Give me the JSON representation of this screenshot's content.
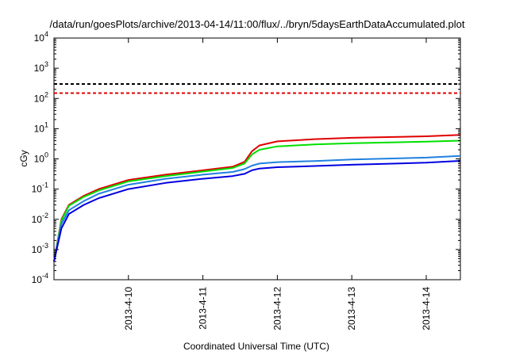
{
  "chart_data": {
    "type": "line",
    "title": "/data/run/goesPlots/archive/2013-04-14/11:00/flux/../bryn/5daysEarthDataAccumulated.plot",
    "xlabel": "Coordinated Universal Time (UTC)",
    "ylabel": "cGy",
    "y_scale": "log",
    "ylim": [
      0.0001,
      10000
    ],
    "xlim": [
      "2013-04-09 00:00",
      "2013-04-14 11:00"
    ],
    "x_tick_labels": [
      "2013-4-10",
      "2013-4-11",
      "2013-4-12",
      "2013-4-13",
      "2013-4-14"
    ],
    "y_tick_labels": [
      {
        "base": "10",
        "exp": "-4"
      },
      {
        "base": "10",
        "exp": "-3"
      },
      {
        "base": "10",
        "exp": "-2"
      },
      {
        "base": "10",
        "exp": "-1"
      },
      {
        "base": "10",
        "exp": "0"
      },
      {
        "base": "10",
        "exp": "1"
      },
      {
        "base": "10",
        "exp": "2"
      },
      {
        "base": "10",
        "exp": "3"
      },
      {
        "base": "10",
        "exp": "4"
      }
    ],
    "grid": false,
    "reference_lines": [
      {
        "y": 300,
        "color": "#000000",
        "style": "dashed"
      },
      {
        "y": 150,
        "color": "#e00000",
        "style": "dashed"
      }
    ],
    "series": [
      {
        "color": "#e00000",
        "x": [
          "2013-04-09 00:00",
          "2013-04-09 02:24",
          "2013-04-09 04:48",
          "2013-04-09 09:36",
          "2013-04-09 14:24",
          "2013-04-10 00:00",
          "2013-04-10 12:00",
          "2013-04-11 00:00",
          "2013-04-11 09:36",
          "2013-04-11 13:26",
          "2013-04-11 15:50",
          "2013-04-11 18:14",
          "2013-04-12 00:00",
          "2013-04-12 12:00",
          "2013-04-13 00:00",
          "2013-04-14 00:00",
          "2013-04-14 11:00"
        ],
        "y": [
          0.0004,
          0.01,
          0.03,
          0.06,
          0.1,
          0.2,
          0.3,
          0.42,
          0.55,
          0.8,
          1.8,
          2.8,
          3.8,
          4.5,
          5.0,
          5.6,
          6.2
        ]
      },
      {
        "color": "#00e000",
        "x": [
          "2013-04-09 00:00",
          "2013-04-09 02:24",
          "2013-04-09 04:48",
          "2013-04-09 09:36",
          "2013-04-09 14:24",
          "2013-04-10 00:00",
          "2013-04-10 12:00",
          "2013-04-11 00:00",
          "2013-04-11 09:36",
          "2013-04-11 13:26",
          "2013-04-11 15:50",
          "2013-04-11 18:14",
          "2013-04-12 00:00",
          "2013-04-12 12:00",
          "2013-04-13 00:00",
          "2013-04-14 00:00",
          "2013-04-14 11:00"
        ],
        "y": [
          0.0004,
          0.009,
          0.028,
          0.055,
          0.09,
          0.18,
          0.27,
          0.38,
          0.5,
          0.7,
          1.4,
          2.0,
          2.6,
          3.0,
          3.3,
          3.7,
          4.0
        ]
      },
      {
        "color": "#2080e0",
        "x": [
          "2013-04-09 00:00",
          "2013-04-09 02:24",
          "2013-04-09 04:48",
          "2013-04-09 09:36",
          "2013-04-09 14:24",
          "2013-04-10 00:00",
          "2013-04-10 12:00",
          "2013-04-11 00:00",
          "2013-04-11 09:36",
          "2013-04-11 13:26",
          "2013-04-11 15:50",
          "2013-04-11 18:14",
          "2013-04-12 00:00",
          "2013-04-12 12:00",
          "2013-04-13 00:00",
          "2013-04-14 00:00",
          "2013-04-14 11:00"
        ],
        "y": [
          0.0004,
          0.007,
          0.02,
          0.04,
          0.07,
          0.14,
          0.22,
          0.3,
          0.37,
          0.46,
          0.6,
          0.7,
          0.78,
          0.85,
          0.95,
          1.1,
          1.25
        ]
      },
      {
        "color": "#0000e0",
        "x": [
          "2013-04-09 00:00",
          "2013-04-09 02:24",
          "2013-04-09 04:48",
          "2013-04-09 09:36",
          "2013-04-09 14:24",
          "2013-04-10 00:00",
          "2013-04-10 12:00",
          "2013-04-11 00:00",
          "2013-04-11 09:36",
          "2013-04-11 13:26",
          "2013-04-11 15:50",
          "2013-04-11 18:14",
          "2013-04-12 00:00",
          "2013-04-12 12:00",
          "2013-04-13 00:00",
          "2013-04-14 00:00",
          "2013-04-14 11:00"
        ],
        "y": [
          0.0004,
          0.005,
          0.015,
          0.03,
          0.05,
          0.1,
          0.16,
          0.22,
          0.27,
          0.32,
          0.42,
          0.48,
          0.53,
          0.58,
          0.64,
          0.75,
          0.86
        ]
      }
    ]
  }
}
